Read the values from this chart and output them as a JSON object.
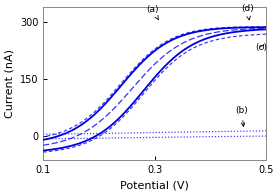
{
  "title": "",
  "xlabel": "Potential (V)",
  "ylabel": "Current (nA)",
  "xlim": [
    0.1,
    0.5
  ],
  "ylim": [
    -65,
    340
  ],
  "yticks": [
    0,
    150,
    300
  ],
  "ytick_labels": [
    "0",
    "150",
    "300"
  ],
  "xticks": [
    0.1,
    0.3,
    0.5
  ],
  "xtick_labels": [
    "0.1",
    "0.3",
    "0.5"
  ],
  "background_color": "#ffffff",
  "color_a": "#0000dd",
  "color_bcd": "#3333ff"
}
